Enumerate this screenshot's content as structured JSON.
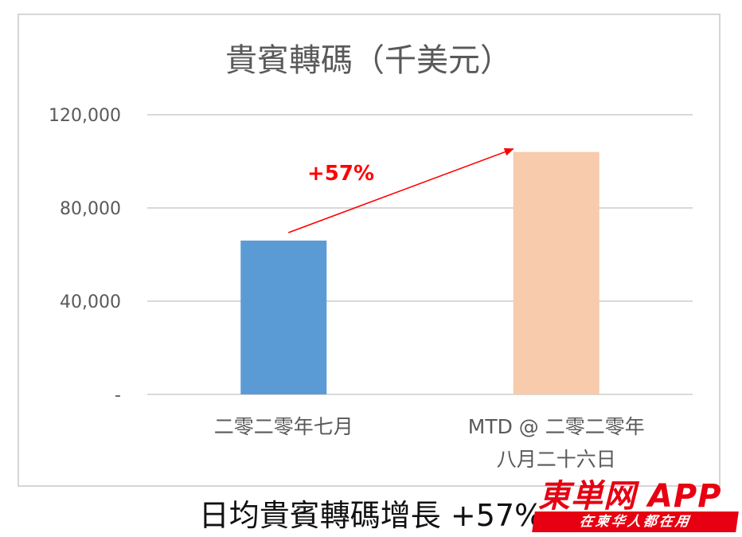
{
  "chart_data": {
    "type": "bar",
    "title": "貴賓轉碼（千美元）",
    "categories": [
      [
        "二零二零年七月"
      ],
      [
        "MTD @ 二零二零年",
        "八月二十六日"
      ]
    ],
    "values": [
      66000,
      104000
    ],
    "colors": [
      "#5b9bd5",
      "#f8cbad"
    ],
    "ylim": [
      0,
      120000
    ],
    "yticks": [
      {
        "value": 0,
        "label": "-"
      },
      {
        "value": 40000,
        "label": "40,000"
      },
      {
        "value": 80000,
        "label": "80,000"
      },
      {
        "value": 120000,
        "label": "120,000"
      }
    ],
    "grid": true,
    "annotation": {
      "text": "+57%",
      "color": "#ff0000"
    }
  },
  "caption": "日均貴賓轉碼增長 +57%",
  "watermark": {
    "main": "東単网 APP",
    "sub": "在柬华人都在用"
  }
}
